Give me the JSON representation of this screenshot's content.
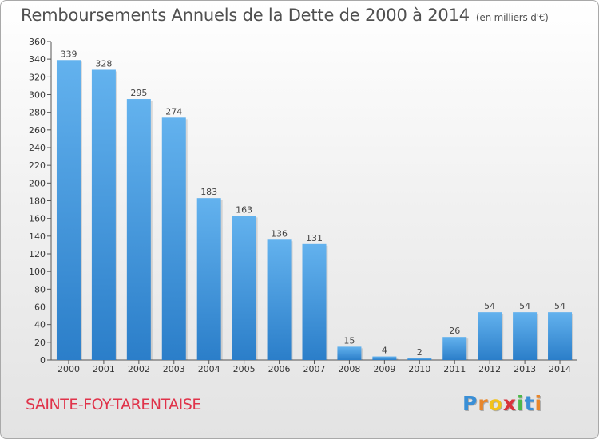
{
  "title": "Remboursements Annuels de la Dette de 2000 à 2014",
  "subtitle": "(en milliers d'€)",
  "commune": "SAINTE-FOY-TARENTAISE",
  "logo": {
    "letters": [
      "P",
      "r",
      "o",
      "x",
      "i",
      "t",
      "i"
    ],
    "colors": [
      "#3a8fd6",
      "#e8862a",
      "#f2c21a",
      "#d8323a",
      "#4db84a",
      "#3a8fd6",
      "#e8862a"
    ]
  },
  "colors": {
    "bar_top": "#63b2ee",
    "bar_bottom": "#2b7ec9",
    "title": "#505050",
    "commune": "#e0334a"
  },
  "chart_data": {
    "type": "bar",
    "title": "Remboursements Annuels de la Dette de 2000 à 2014",
    "xlabel": "",
    "ylabel": "",
    "categories": [
      "2000",
      "2001",
      "2002",
      "2003",
      "2004",
      "2005",
      "2006",
      "2007",
      "2008",
      "2009",
      "2010",
      "2011",
      "2012",
      "2013",
      "2014"
    ],
    "values": [
      339,
      328,
      295,
      274,
      183,
      163,
      136,
      131,
      15,
      4,
      2,
      26,
      54,
      54,
      54
    ],
    "ylim": [
      0,
      360
    ],
    "yticks": [
      0,
      20,
      40,
      60,
      80,
      100,
      120,
      140,
      160,
      180,
      200,
      220,
      240,
      260,
      280,
      300,
      320,
      340,
      360
    ],
    "grid": false
  }
}
